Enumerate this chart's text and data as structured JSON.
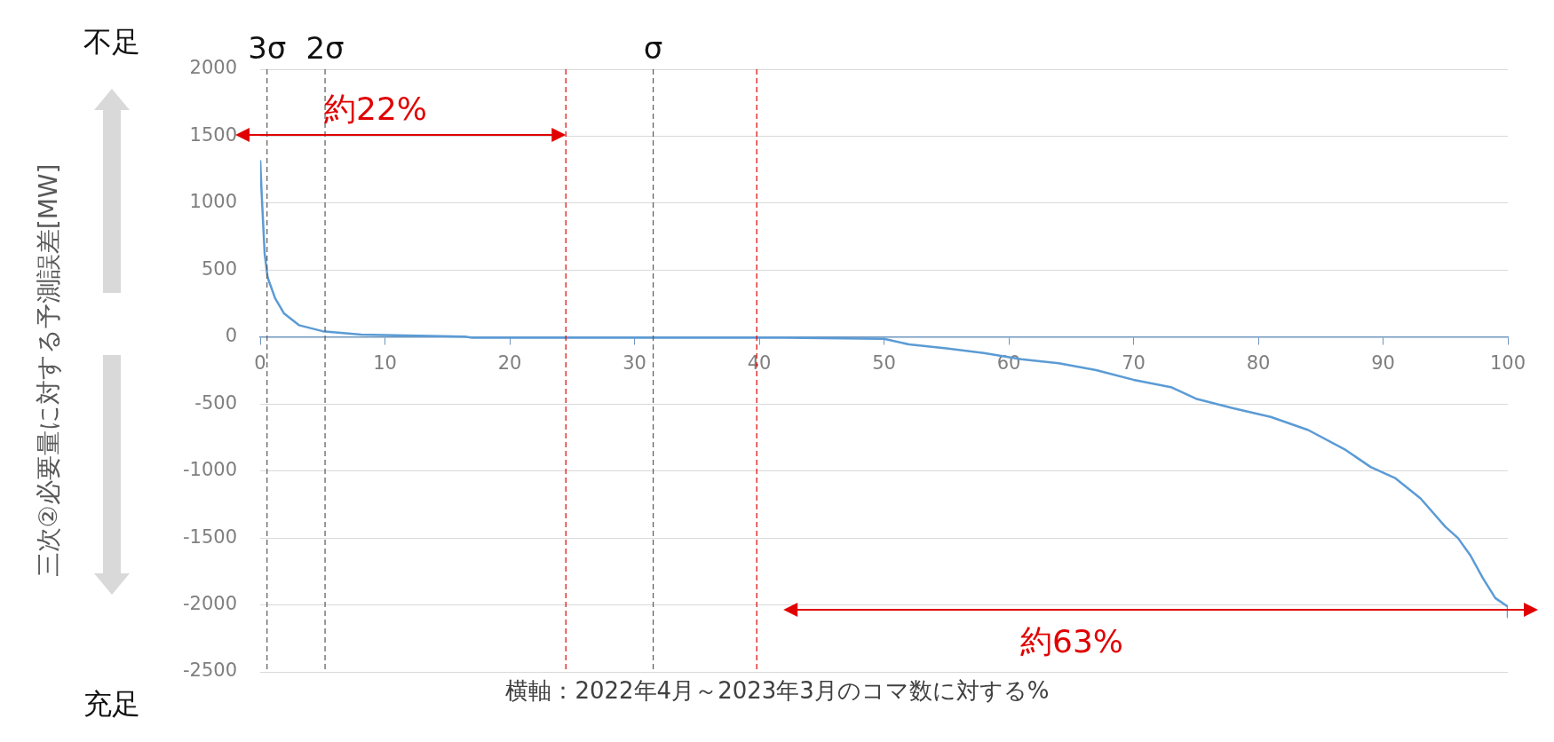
{
  "chart_data": {
    "type": "line",
    "xlabel": "横軸：2022年4月～2023年3月のコマ数に対する%",
    "ylabel": "三次②必要量に対する予測誤差[MW]",
    "x": [
      0,
      0.12,
      0.36,
      0.6,
      1.2,
      1.9,
      3.1,
      5,
      8.1,
      16.4,
      17,
      42,
      50,
      52,
      55,
      58,
      61,
      64,
      67,
      70,
      73,
      75,
      78,
      81,
      84,
      87,
      89,
      91,
      93,
      95,
      96,
      97,
      98,
      99,
      100,
      100
    ],
    "series": [
      {
        "color": "#5b9bd5",
        "values": [
          1320,
          1067,
          622,
          444,
          289,
          178,
          89,
          44,
          18,
          4,
          -5,
          -5,
          -13,
          -55,
          -85,
          -119,
          -166,
          -196,
          -247,
          -319,
          -374,
          -460,
          -532,
          -596,
          -694,
          -843,
          -970,
          -1055,
          -1204,
          -1417,
          -1500,
          -1630,
          -1800,
          -1949,
          -2013,
          -2090
        ]
      }
    ],
    "xlim": [
      0,
      100
    ],
    "xticks": [
      0,
      10,
      20,
      30,
      40,
      50,
      60,
      70,
      80,
      90,
      100
    ],
    "ylim": [
      -2500,
      2000
    ],
    "yticks": [
      -2500,
      -2000,
      -1500,
      -1000,
      -500,
      0,
      500,
      1000,
      1500,
      2000
    ],
    "grid": "y",
    "marker": "none",
    "line_style": "solid",
    "ref_lines": [
      {
        "axis": "x",
        "value": 0.55,
        "label": "3σ",
        "color": "#595959",
        "line_style": "dashed"
      },
      {
        "axis": "x",
        "value": 5.2,
        "label": "2σ",
        "color": "#595959",
        "line_style": "dashed"
      },
      {
        "axis": "x",
        "value": 31.5,
        "label": "σ",
        "color": "#595959",
        "line_style": "dashed"
      },
      {
        "axis": "x",
        "value": 24.5,
        "label": null,
        "color": "#e00000",
        "line_style": "dashed"
      },
      {
        "axis": "x",
        "value": 39.8,
        "label": null,
        "color": "#e00000",
        "line_style": "dashed"
      }
    ],
    "annotations": [
      "約22%",
      "約63%",
      "不足",
      "充足"
    ]
  }
}
